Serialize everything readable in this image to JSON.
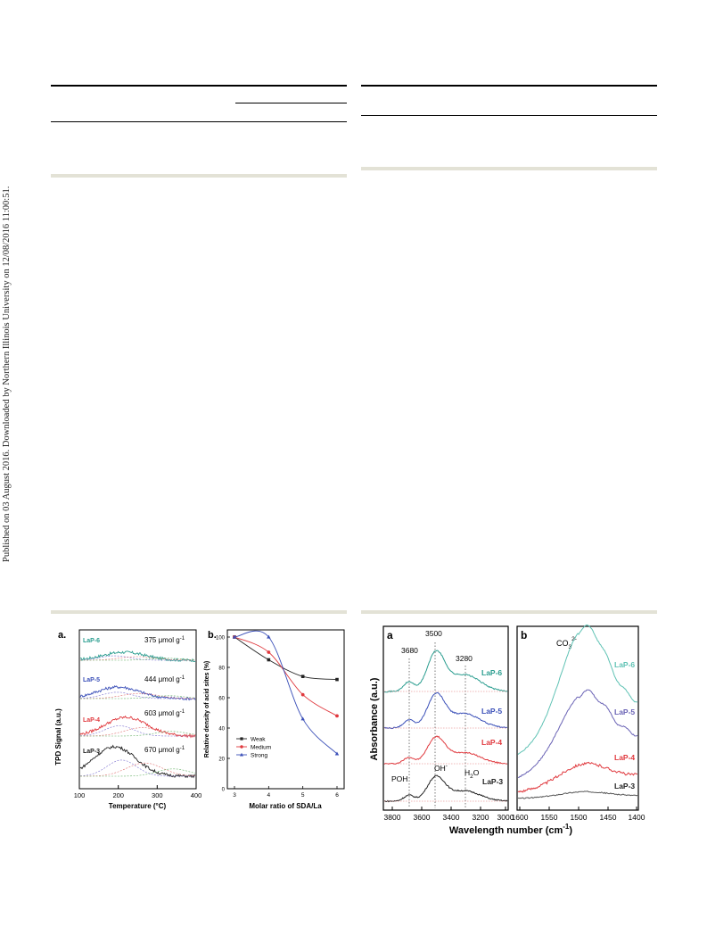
{
  "sidebar_text": "Published on 03 August 2016. Downloaded by Northern Illinois University on 12/08/2016 11:00:51.",
  "fig_left": {
    "panel_a": {
      "label": "a.",
      "ylabel": "TPD Signal (a.u.)",
      "xlabel": "Temperature (°C)",
      "xticks": [
        "100",
        "200",
        "300",
        "400"
      ],
      "samples": [
        {
          "name": "LaP-6",
          "value": "375 μmol g",
          "color": "#2a9d8f"
        },
        {
          "name": "LaP-5",
          "value": "444 μmol g",
          "color": "#3a4fb8"
        },
        {
          "name": "LaP-4",
          "value": "603 μmol g",
          "color": "#e0393e"
        },
        {
          "name": "LaP-3",
          "value": "670 μmol g",
          "color": "#222222"
        }
      ],
      "unit_sup": "-1"
    },
    "panel_b": {
      "label": "b.",
      "ylabel": "Relative density of acid sites (%)",
      "xlabel": "Molar ratio of SDA/La",
      "xticks": [
        "3",
        "4",
        "5",
        "6"
      ],
      "yticks": [
        "0",
        "20",
        "40",
        "60",
        "80",
        "100"
      ],
      "legend": [
        "Weak",
        "Medium",
        "Strong"
      ]
    }
  },
  "fig_right": {
    "panel_a": {
      "label": "a",
      "ylabel": "Absorbance (a.u.)",
      "xticks": [
        "3800",
        "3600",
        "3400",
        "3200",
        "3000"
      ],
      "peaks": [
        "3680",
        "3500",
        "3280"
      ],
      "annot_poh": "POH",
      "annot_oh": "OH",
      "annot_oh_sup": "-",
      "annot_h2o_a": "H",
      "annot_h2o_sub": "2",
      "annot_h2o_b": "O",
      "samples": [
        {
          "name": "LaP-6",
          "color": "#2a9d8f"
        },
        {
          "name": "LaP-5",
          "color": "#3a4fb8"
        },
        {
          "name": "LaP-4",
          "color": "#e0393e"
        },
        {
          "name": "LaP-3",
          "color": "#222222"
        }
      ]
    },
    "panel_b": {
      "label": "b",
      "annot": "CO",
      "annot_sub": "3",
      "annot_sup": "2-",
      "xticks": [
        "1600",
        "1550",
        "1500",
        "1450",
        "1400"
      ],
      "samples": [
        {
          "name": "LaP-6",
          "color": "#5fc2b4"
        },
        {
          "name": "LaP-5",
          "color": "#6a63b5"
        },
        {
          "name": "LaP-4",
          "color": "#e0393e"
        },
        {
          "name": "LaP-3",
          "color": "#555555"
        }
      ]
    },
    "xlabel_a": "Wavelength number (cm",
    "xlabel_sup": "-1",
    "xlabel_b": ")"
  },
  "chart_data": [
    {
      "type": "line",
      "title": "",
      "xlabel": "Molar ratio of SDA/La",
      "ylabel": "Relative density of acid sites (%)",
      "xlim": [
        3,
        6
      ],
      "ylim": [
        0,
        100
      ],
      "x": [
        3,
        4,
        5,
        6
      ],
      "series": [
        {
          "name": "Weak",
          "color": "#222222",
          "marker": "square",
          "values": [
            100,
            85,
            74,
            72
          ]
        },
        {
          "name": "Medium",
          "color": "#e0393e",
          "marker": "circle",
          "values": [
            100,
            90,
            62,
            48
          ]
        },
        {
          "name": "Strong",
          "color": "#3a4fb8",
          "marker": "triangle",
          "values": [
            100,
            100,
            46,
            23
          ]
        }
      ],
      "legend_position": "bottom-left"
    }
  ]
}
